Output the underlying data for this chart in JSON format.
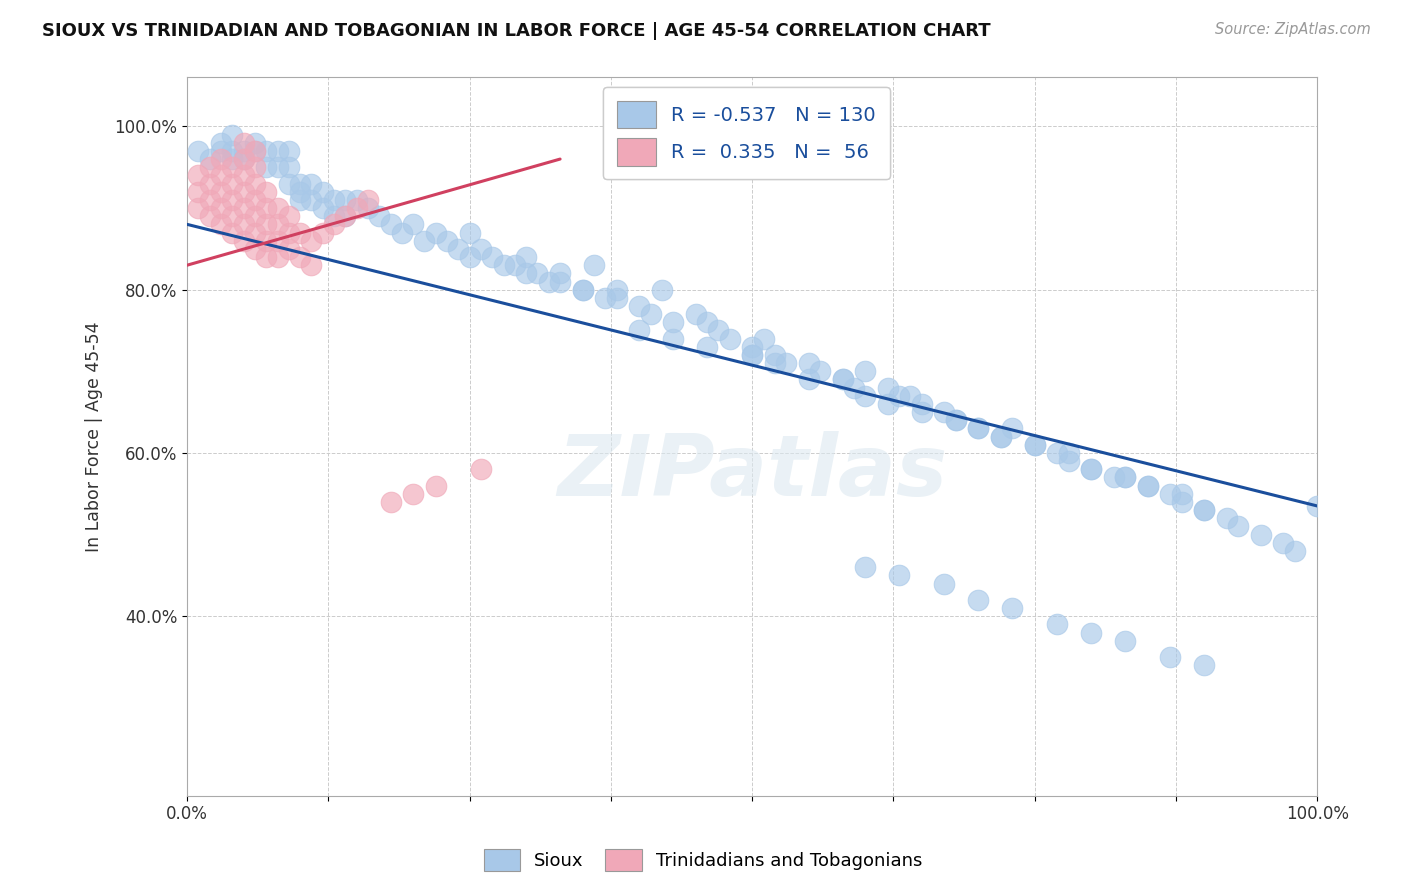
{
  "title": "SIOUX VS TRINIDADIAN AND TOBAGONIAN IN LABOR FORCE | AGE 45-54 CORRELATION CHART",
  "source": "Source: ZipAtlas.com",
  "ylabel": "In Labor Force | Age 45-54",
  "xlim": [
    0.0,
    1.0
  ],
  "ylim": [
    0.18,
    1.06
  ],
  "ytick_positions": [
    0.4,
    0.6,
    0.8,
    1.0
  ],
  "ytick_labels": [
    "40.0%",
    "60.0%",
    "80.0%",
    "100.0%"
  ],
  "xtick_positions": [
    0.0,
    1.0
  ],
  "xtick_labels": [
    "0.0%",
    "100.0%"
  ],
  "legend_labels": [
    "Sioux",
    "Trinidadians and Tobagonians"
  ],
  "blue_color": "#A8C8E8",
  "pink_color": "#F0A8B8",
  "blue_line_color": "#1A4E9C",
  "pink_line_color": "#D04060",
  "R_blue": -0.537,
  "N_blue": 130,
  "R_pink": 0.335,
  "N_pink": 56,
  "watermark": "ZIPatlas",
  "blue_trend_x0": 0.0,
  "blue_trend_y0": 0.88,
  "blue_trend_x1": 1.0,
  "blue_trend_y1": 0.535,
  "pink_trend_x0": 0.0,
  "pink_trend_y0": 0.83,
  "pink_trend_x1": 0.33,
  "pink_trend_y1": 0.96,
  "blue_x": [
    0.01,
    0.02,
    0.03,
    0.03,
    0.04,
    0.04,
    0.04,
    0.05,
    0.05,
    0.06,
    0.06,
    0.07,
    0.07,
    0.08,
    0.08,
    0.09,
    0.09,
    0.09,
    0.1,
    0.1,
    0.1,
    0.11,
    0.11,
    0.12,
    0.12,
    0.13,
    0.13,
    0.14,
    0.14,
    0.15,
    0.16,
    0.17,
    0.18,
    0.19,
    0.2,
    0.21,
    0.22,
    0.23,
    0.24,
    0.25,
    0.25,
    0.26,
    0.27,
    0.28,
    0.29,
    0.3,
    0.31,
    0.32,
    0.33,
    0.35,
    0.36,
    0.37,
    0.38,
    0.4,
    0.41,
    0.42,
    0.43,
    0.45,
    0.46,
    0.47,
    0.48,
    0.5,
    0.51,
    0.52,
    0.53,
    0.55,
    0.56,
    0.58,
    0.59,
    0.6,
    0.62,
    0.63,
    0.64,
    0.65,
    0.67,
    0.68,
    0.7,
    0.72,
    0.73,
    0.75,
    0.77,
    0.78,
    0.8,
    0.82,
    0.83,
    0.85,
    0.87,
    0.88,
    0.9,
    0.92,
    0.93,
    0.95,
    0.97,
    0.98,
    1.0,
    0.5,
    0.52,
    0.55,
    0.58,
    0.6,
    0.62,
    0.65,
    0.68,
    0.7,
    0.72,
    0.75,
    0.78,
    0.8,
    0.83,
    0.85,
    0.88,
    0.9,
    0.4,
    0.43,
    0.46,
    0.5,
    0.3,
    0.33,
    0.35,
    0.38,
    0.6,
    0.63,
    0.67,
    0.7,
    0.73,
    0.77,
    0.8,
    0.83,
    0.87,
    0.9
  ],
  "blue_y": [
    0.97,
    0.96,
    0.97,
    0.98,
    0.97,
    0.96,
    0.99,
    0.97,
    0.96,
    0.98,
    0.97,
    0.97,
    0.95,
    0.97,
    0.95,
    0.97,
    0.95,
    0.93,
    0.93,
    0.92,
    0.91,
    0.93,
    0.91,
    0.92,
    0.9,
    0.91,
    0.89,
    0.91,
    0.89,
    0.91,
    0.9,
    0.89,
    0.88,
    0.87,
    0.88,
    0.86,
    0.87,
    0.86,
    0.85,
    0.84,
    0.87,
    0.85,
    0.84,
    0.83,
    0.83,
    0.84,
    0.82,
    0.81,
    0.82,
    0.8,
    0.83,
    0.79,
    0.8,
    0.78,
    0.77,
    0.8,
    0.76,
    0.77,
    0.76,
    0.75,
    0.74,
    0.73,
    0.74,
    0.72,
    0.71,
    0.71,
    0.7,
    0.69,
    0.68,
    0.7,
    0.68,
    0.67,
    0.67,
    0.66,
    0.65,
    0.64,
    0.63,
    0.62,
    0.63,
    0.61,
    0.6,
    0.59,
    0.58,
    0.57,
    0.57,
    0.56,
    0.55,
    0.54,
    0.53,
    0.52,
    0.51,
    0.5,
    0.49,
    0.48,
    0.535,
    0.72,
    0.71,
    0.69,
    0.69,
    0.67,
    0.66,
    0.65,
    0.64,
    0.63,
    0.62,
    0.61,
    0.6,
    0.58,
    0.57,
    0.56,
    0.55,
    0.53,
    0.75,
    0.74,
    0.73,
    0.72,
    0.82,
    0.81,
    0.8,
    0.79,
    0.46,
    0.45,
    0.44,
    0.42,
    0.41,
    0.39,
    0.38,
    0.37,
    0.35,
    0.34
  ],
  "pink_x": [
    0.01,
    0.01,
    0.01,
    0.02,
    0.02,
    0.02,
    0.02,
    0.03,
    0.03,
    0.03,
    0.03,
    0.03,
    0.04,
    0.04,
    0.04,
    0.04,
    0.04,
    0.05,
    0.05,
    0.05,
    0.05,
    0.05,
    0.05,
    0.05,
    0.06,
    0.06,
    0.06,
    0.06,
    0.06,
    0.06,
    0.06,
    0.07,
    0.07,
    0.07,
    0.07,
    0.07,
    0.08,
    0.08,
    0.08,
    0.08,
    0.09,
    0.09,
    0.09,
    0.1,
    0.1,
    0.11,
    0.11,
    0.12,
    0.13,
    0.14,
    0.15,
    0.16,
    0.18,
    0.2,
    0.22,
    0.26
  ],
  "pink_y": [
    0.9,
    0.92,
    0.94,
    0.89,
    0.91,
    0.93,
    0.95,
    0.88,
    0.9,
    0.92,
    0.94,
    0.96,
    0.87,
    0.89,
    0.91,
    0.93,
    0.95,
    0.86,
    0.88,
    0.9,
    0.92,
    0.94,
    0.96,
    0.98,
    0.85,
    0.87,
    0.89,
    0.91,
    0.93,
    0.95,
    0.97,
    0.84,
    0.86,
    0.88,
    0.9,
    0.92,
    0.84,
    0.86,
    0.88,
    0.9,
    0.85,
    0.87,
    0.89,
    0.84,
    0.87,
    0.83,
    0.86,
    0.87,
    0.88,
    0.89,
    0.9,
    0.91,
    0.54,
    0.55,
    0.56,
    0.58
  ]
}
